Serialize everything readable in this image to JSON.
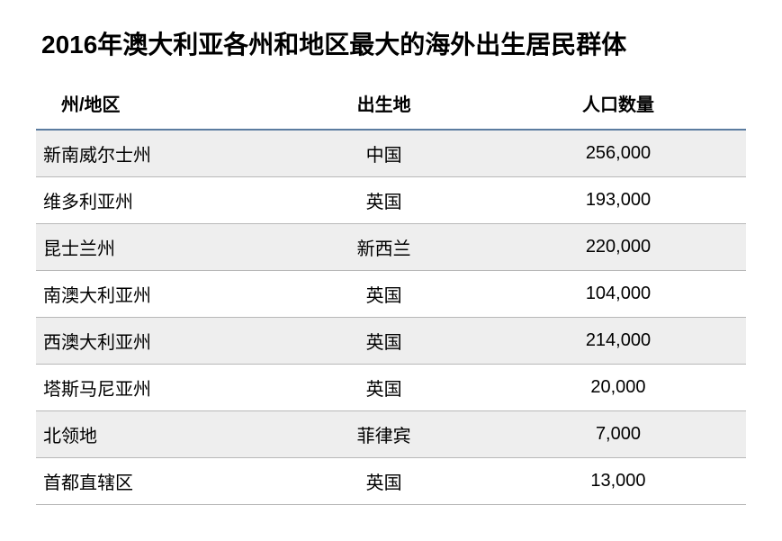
{
  "title": "2016年澳大利亚各州和地区最大的海外出生居民群体",
  "table": {
    "type": "table",
    "columns": [
      {
        "key": "state",
        "label": "州/地区",
        "align": "left"
      },
      {
        "key": "origin",
        "label": "出生地",
        "align": "center"
      },
      {
        "key": "population",
        "label": "人口数量",
        "align": "center"
      }
    ],
    "rows": [
      {
        "state": "新南威尔士州",
        "origin": "中国",
        "population": "256,000"
      },
      {
        "state": "维多利亚州",
        "origin": "英国",
        "population": "193,000"
      },
      {
        "state": "昆士兰州",
        "origin": "新西兰",
        "population": "220,000"
      },
      {
        "state": "南澳大利亚州",
        "origin": "英国",
        "population": "104,000"
      },
      {
        "state": "西澳大利亚州",
        "origin": "英国",
        "population": "214,000"
      },
      {
        "state": "塔斯马尼亚州",
        "origin": "英国",
        "population": "20,000"
      },
      {
        "state": "北领地",
        "origin": "菲律宾",
        "population": "7,000"
      },
      {
        "state": "首都直辖区",
        "origin": "英国",
        "population": "13,000"
      }
    ],
    "styling": {
      "title_fontsize": 28,
      "header_fontsize": 20,
      "cell_fontsize": 20,
      "header_rule_color": "#5b7ca0",
      "row_border_color": "#b8b8b8",
      "row_alt_background": "#eeeeee",
      "row_background": "#ffffff",
      "text_color": "#000000",
      "font_weight_title": 700,
      "font_weight_header": 700,
      "font_weight_cell": 400
    }
  }
}
